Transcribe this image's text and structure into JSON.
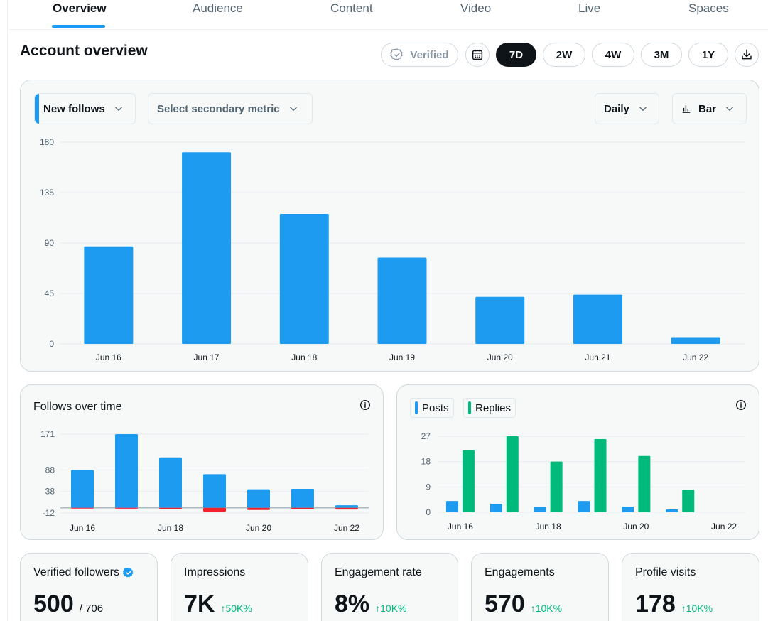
{
  "tabs": [
    "Overview",
    "Audience",
    "Content",
    "Video",
    "Live",
    "Spaces"
  ],
  "header": {
    "title": "Account overview",
    "verified_label": "Verified",
    "ranges": [
      "7D",
      "2W",
      "4W",
      "3M",
      "1Y"
    ],
    "active_range": "7D"
  },
  "main_chart": {
    "primary_metric": "New follows",
    "secondary_metric_placeholder": "Select secondary metric",
    "interval": "Daily",
    "chart_type_label": "Bar"
  },
  "follows_card": {
    "title": "Follows over time"
  },
  "posts_card": {
    "legend": [
      "Posts",
      "Replies"
    ]
  },
  "stats": [
    {
      "label": "Verified followers",
      "value": "500",
      "sub": "/ 706",
      "delta": ""
    },
    {
      "label": "Impressions",
      "value": "7K",
      "sub": "",
      "delta": "↑50K%"
    },
    {
      "label": "Engagement rate",
      "value": "8%",
      "sub": "",
      "delta": "↑10K%"
    },
    {
      "label": "Engagements",
      "value": "570",
      "sub": "",
      "delta": "↑10K%"
    },
    {
      "label": "Profile visits",
      "value": "178",
      "sub": "",
      "delta": "↑10K%"
    }
  ],
  "colors": {
    "accent": "#1d9bf0",
    "green": "#00ba7c",
    "red": "#f4212e"
  },
  "icons": [
    "verified-check-icon",
    "calendar-icon",
    "download-icon",
    "chevron-down-icon",
    "bar-chart-icon",
    "info-icon",
    "verified-badge-icon"
  ],
  "chart_data": [
    {
      "type": "bar",
      "categories": [
        "Jun 16",
        "Jun 17",
        "Jun 18",
        "Jun 19",
        "Jun 20",
        "Jun 21",
        "Jun 22"
      ],
      "series": [
        {
          "values": [
            87,
            171,
            116,
            77,
            42,
            44,
            6
          ]
        }
      ],
      "yticks": [
        0,
        45,
        90,
        135,
        180
      ],
      "ylim": [
        0,
        180
      ],
      "grid": true
    },
    {
      "type": "bar",
      "categories": [
        "Jun 16",
        "Jun 17",
        "Jun 18",
        "Jun 19",
        "Jun 20",
        "Jun 21",
        "Jun 22"
      ],
      "xtick_labels": [
        "Jun 16",
        "",
        "Jun 18",
        "",
        "Jun 20",
        "",
        "Jun 22"
      ],
      "series": [
        {
          "values": [
            88,
            171,
            117,
            78,
            43,
            44,
            6
          ],
          "color": "#1d9bf0"
        },
        {
          "values": [
            -1,
            -2,
            -3,
            -9,
            -5,
            -3,
            -4
          ],
          "color": "#f4212e"
        }
      ],
      "yticks": [
        -12,
        38,
        88,
        171
      ],
      "ylim": [
        -12,
        171
      ],
      "grid": true
    },
    {
      "type": "bar",
      "categories": [
        "Jun 16",
        "Jun 17",
        "Jun 18",
        "Jun 19",
        "Jun 20",
        "Jun 21",
        "Jun 22"
      ],
      "xtick_labels": [
        "Jun 16",
        "",
        "Jun 18",
        "",
        "Jun 20",
        "",
        "Jun 22"
      ],
      "series": [
        {
          "name": "Posts",
          "values": [
            4,
            3,
            2,
            4,
            2,
            1,
            0
          ],
          "color": "#1d9bf0"
        },
        {
          "name": "Replies",
          "values": [
            22,
            27,
            18,
            26,
            20,
            8,
            0
          ],
          "color": "#00ba7c"
        }
      ],
      "yticks": [
        0,
        9,
        18,
        27
      ],
      "ylim": [
        0,
        27
      ],
      "grid": true
    }
  ]
}
